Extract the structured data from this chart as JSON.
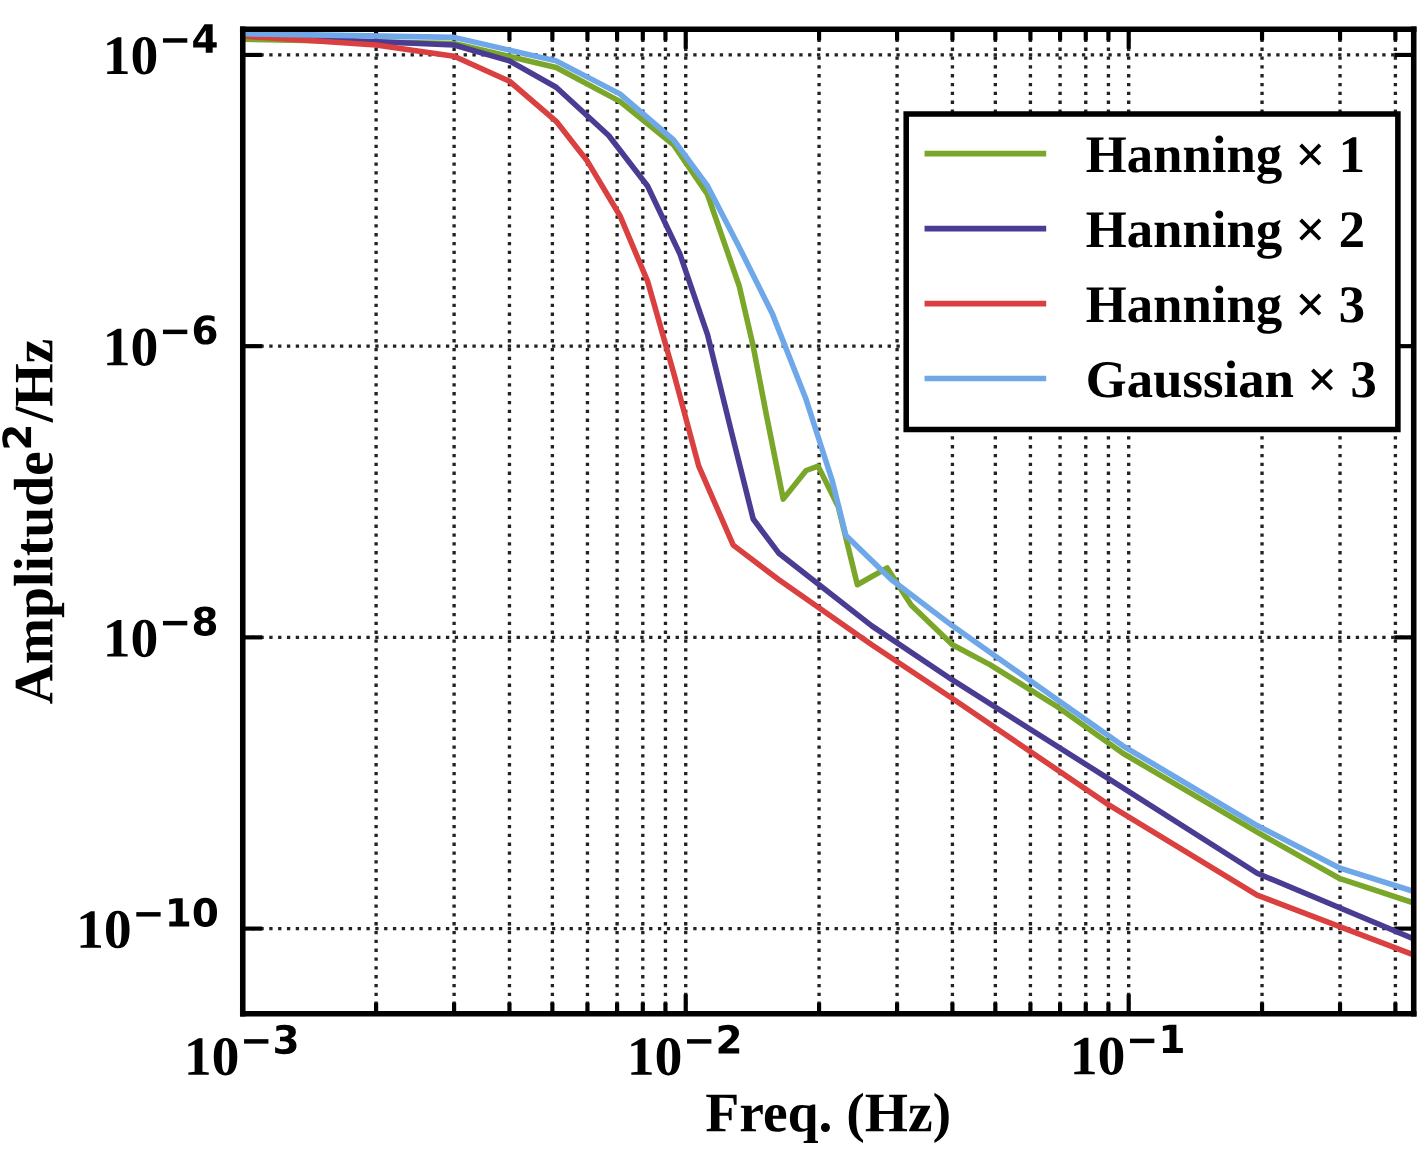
{
  "chart_data": {
    "type": "line",
    "xlabel": "Freq. (Hz)",
    "ylabel": "Amplitude$^{2}$/Hz",
    "log": "xy",
    "grid": true,
    "legend": "top right",
    "line_style": "solid",
    "marker": "none",
    "xlim": [
      0.001,
      0.44
    ],
    "ylim": [
      2.6e-11,
      0.00015
    ],
    "xticks": [
      {
        "value": 0.001,
        "label": "10$^{−3}$"
      },
      {
        "value": 0.01,
        "label": "10$^{−2}$"
      },
      {
        "value": 0.1,
        "label": "10$^{−1}$"
      }
    ],
    "yticks": [
      {
        "value": 1e-10,
        "label": "10$^{−10}$"
      },
      {
        "value": 1e-08,
        "label": "10$^{−8}$"
      },
      {
        "value": 1e-06,
        "label": "10$^{−6}$"
      },
      {
        "value": 0.0001,
        "label": "10$^{−4}$"
      }
    ],
    "series": [
      {
        "name": "Hanning × 1",
        "color": "#7aa62a",
        "x": [
          0.001,
          0.003,
          0.0051,
          0.0071,
          0.0094,
          0.0112,
          0.0132,
          0.0142,
          0.0152,
          0.0166,
          0.0187,
          0.0199,
          0.0221,
          0.0244,
          0.0285,
          0.0323,
          0.04,
          0.0486,
          0.0684,
          0.097,
          0.195,
          0.3,
          0.44
        ],
        "values": [
          0.000128,
          0.00012,
          8.2e-05,
          4.8e-05,
          2.4e-05,
          1.1e-05,
          2.6e-06,
          1e-06,
          3.4e-07,
          8.9e-08,
          1.4e-07,
          1.5e-07,
          7.9e-08,
          2.3e-08,
          3e-08,
          1.66e-08,
          8.9e-09,
          6.5e-09,
          3.4e-09,
          1.6e-09,
          4.6e-10,
          2.2e-10,
          1.5e-10
        ]
      },
      {
        "name": "Hanning × 2",
        "color": "#4b3c93",
        "x": [
          0.001,
          0.003,
          0.004,
          0.0051,
          0.0067,
          0.0082,
          0.0097,
          0.0112,
          0.0128,
          0.0142,
          0.0162,
          0.0263,
          0.04,
          0.09,
          0.195,
          0.44
        ],
        "values": [
          0.000135,
          0.000117,
          9.1e-05,
          6e-05,
          2.8e-05,
          1.26e-05,
          4.3e-06,
          1.2e-06,
          2.3e-07,
          6.5e-08,
          3.8e-08,
          1.2e-08,
          5.1e-09,
          1.07e-09,
          2.4e-10,
          8.5e-11
        ]
      },
      {
        "name": "Hanning × 3",
        "color": "#d9403f",
        "x": [
          0.001,
          0.002,
          0.003,
          0.004,
          0.0051,
          0.006,
          0.0071,
          0.0082,
          0.0094,
          0.0107,
          0.0128,
          0.0162,
          0.0263,
          0.04,
          0.09,
          0.195,
          0.44
        ],
        "values": [
          0.000135,
          0.000117,
          9.8e-05,
          6.6e-05,
          3.5e-05,
          1.86e-05,
          7.9e-06,
          2.8e-06,
          6.5e-07,
          1.5e-07,
          4.3e-08,
          2.5e-08,
          8.9e-09,
          3.8e-09,
          7.1e-10,
          1.7e-10,
          6.6e-11
        ]
      },
      {
        "name": "Gaussian × 3",
        "color": "#6fa8e8",
        "x": [
          0.001,
          0.003,
          0.0051,
          0.0071,
          0.0094,
          0.0112,
          0.0132,
          0.0157,
          0.0187,
          0.0214,
          0.023,
          0.0291,
          0.04,
          0.0684,
          0.097,
          0.195,
          0.3,
          0.44
        ],
        "values": [
          0.00014,
          0.000132,
          9.1e-05,
          5.4e-05,
          2.6e-05,
          1.26e-05,
          4.8e-06,
          1.66e-06,
          4.3e-07,
          1.2e-07,
          5e-08,
          2.5e-08,
          1.2e-08,
          3.8e-09,
          1.8e-09,
          5.1e-10,
          2.6e-10,
          1.8e-10
        ]
      }
    ]
  }
}
